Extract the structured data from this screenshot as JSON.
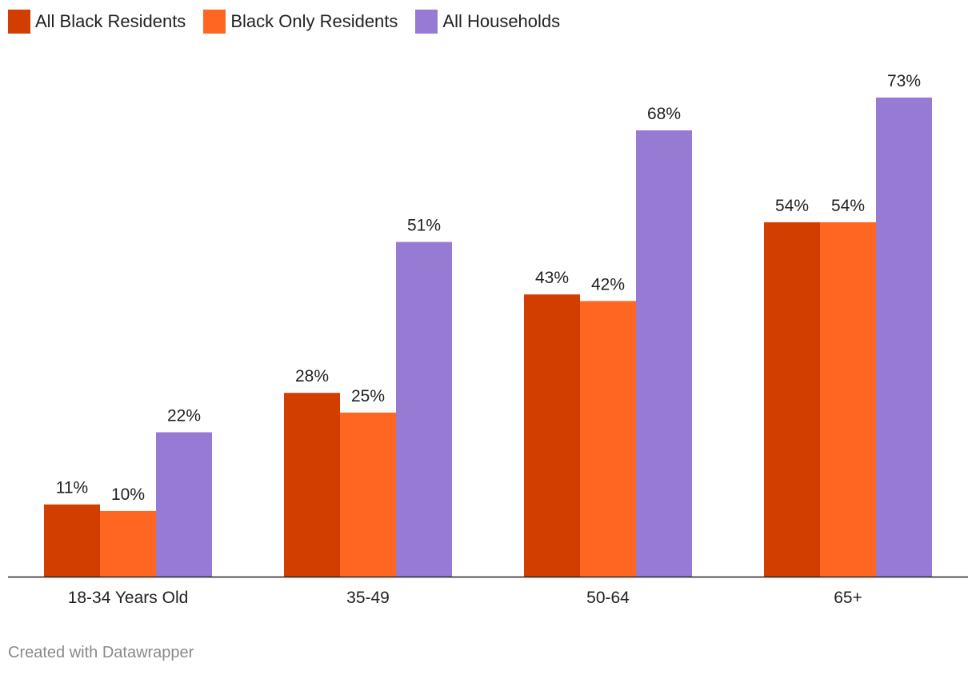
{
  "chart_data": {
    "type": "bar",
    "categories": [
      "18-34 Years Old",
      "35-49",
      "50-64",
      "65+"
    ],
    "series": [
      {
        "name": "All Black Residents",
        "values": [
          11,
          28,
          43,
          54
        ],
        "labels": [
          "11%",
          "28%",
          "43%",
          "54%"
        ],
        "color": "#d23e00"
      },
      {
        "name": "Black Only Residents",
        "values": [
          10,
          25,
          42,
          54
        ],
        "labels": [
          "10%",
          "25%",
          "42%",
          "54%"
        ],
        "color": "#ff6621"
      },
      {
        "name": "All Households",
        "values": [
          22,
          51,
          68,
          73
        ],
        "labels": [
          "22%",
          "51%",
          "68%",
          "73%"
        ],
        "color": "#977ad4"
      }
    ],
    "ylim": [
      0,
      73
    ],
    "grid": false,
    "legend_position": "top-left"
  },
  "footer": {
    "credit": "Created with Datawrapper"
  }
}
